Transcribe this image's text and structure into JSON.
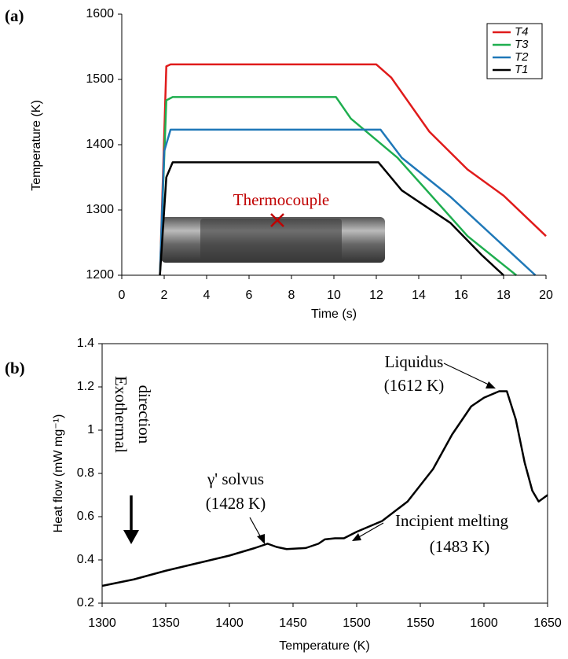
{
  "chart_data": [
    {
      "type": "line",
      "label": "(a)",
      "x_label": "Time (s)",
      "y_label": "Temperature (K)",
      "xlim": [
        0,
        20
      ],
      "xticks": [
        0,
        2,
        4,
        6,
        8,
        10,
        12,
        14,
        16,
        18,
        20
      ],
      "ylim": [
        1200,
        1600
      ],
      "yticks": [
        1200,
        1300,
        1400,
        1500,
        1600
      ],
      "grid": false,
      "legend": "upper right",
      "annotations": [
        "Thermocouple"
      ],
      "series": [
        {
          "name": "T4",
          "color": "#e01b1b",
          "x": [
            1.8,
            2.1,
            2.3,
            12,
            12.7,
            14.5,
            16.3,
            18,
            20
          ],
          "values": [
            1200,
            1520,
            1523,
            1523,
            1503,
            1420,
            1362,
            1322,
            1260
          ]
        },
        {
          "name": "T3",
          "color": "#1fae4f",
          "x": [
            1.8,
            2.1,
            2.4,
            10.1,
            10.8,
            13,
            16.3,
            18.6
          ],
          "values": [
            1200,
            1468,
            1473,
            1473,
            1440,
            1380,
            1260,
            1200
          ]
        },
        {
          "name": "T2",
          "color": "#1f78b8",
          "x": [
            1.8,
            2.0,
            2.3,
            12.2,
            13.2,
            15.5,
            19.5
          ],
          "values": [
            1200,
            1390,
            1423,
            1423,
            1380,
            1320,
            1200
          ]
        },
        {
          "name": "T1",
          "color": "#000000",
          "x": [
            1.8,
            2.1,
            2.4,
            12.1,
            13.2,
            15.5,
            17,
            18
          ],
          "values": [
            1200,
            1350,
            1373,
            1373,
            1330,
            1280,
            1230,
            1200
          ]
        }
      ]
    },
    {
      "type": "line",
      "label": "(b)",
      "x_label": "Temperature (K)",
      "y_label": "Heat flow (mW mg⁻¹)",
      "xlim": [
        1300,
        1650
      ],
      "xticks": [
        1300,
        1350,
        1400,
        1450,
        1500,
        1550,
        1600,
        1650
      ],
      "ylim": [
        0.2,
        1.4
      ],
      "yticks": [
        0.2,
        0.4,
        0.6,
        0.8,
        1,
        1.2,
        1.4
      ],
      "grid": false,
      "color": "#000000",
      "annotations": [
        "Exothermal",
        "direction",
        "γ' solvus",
        "(1428 K)",
        "Liquidus",
        "(1612 K)",
        "Incipient melting",
        "(1483 K)"
      ],
      "x": [
        1300,
        1325,
        1350,
        1375,
        1400,
        1420,
        1430,
        1437,
        1445,
        1460,
        1470,
        1475,
        1483,
        1490,
        1500,
        1520,
        1540,
        1560,
        1575,
        1590,
        1600,
        1612,
        1618,
        1625,
        1632,
        1638,
        1643,
        1650
      ],
      "values": [
        0.28,
        0.31,
        0.35,
        0.385,
        0.42,
        0.455,
        0.475,
        0.46,
        0.45,
        0.455,
        0.475,
        0.495,
        0.5,
        0.5,
        0.53,
        0.58,
        0.67,
        0.82,
        0.98,
        1.11,
        1.15,
        1.18,
        1.18,
        1.05,
        0.85,
        0.72,
        0.67,
        0.7
      ]
    }
  ]
}
